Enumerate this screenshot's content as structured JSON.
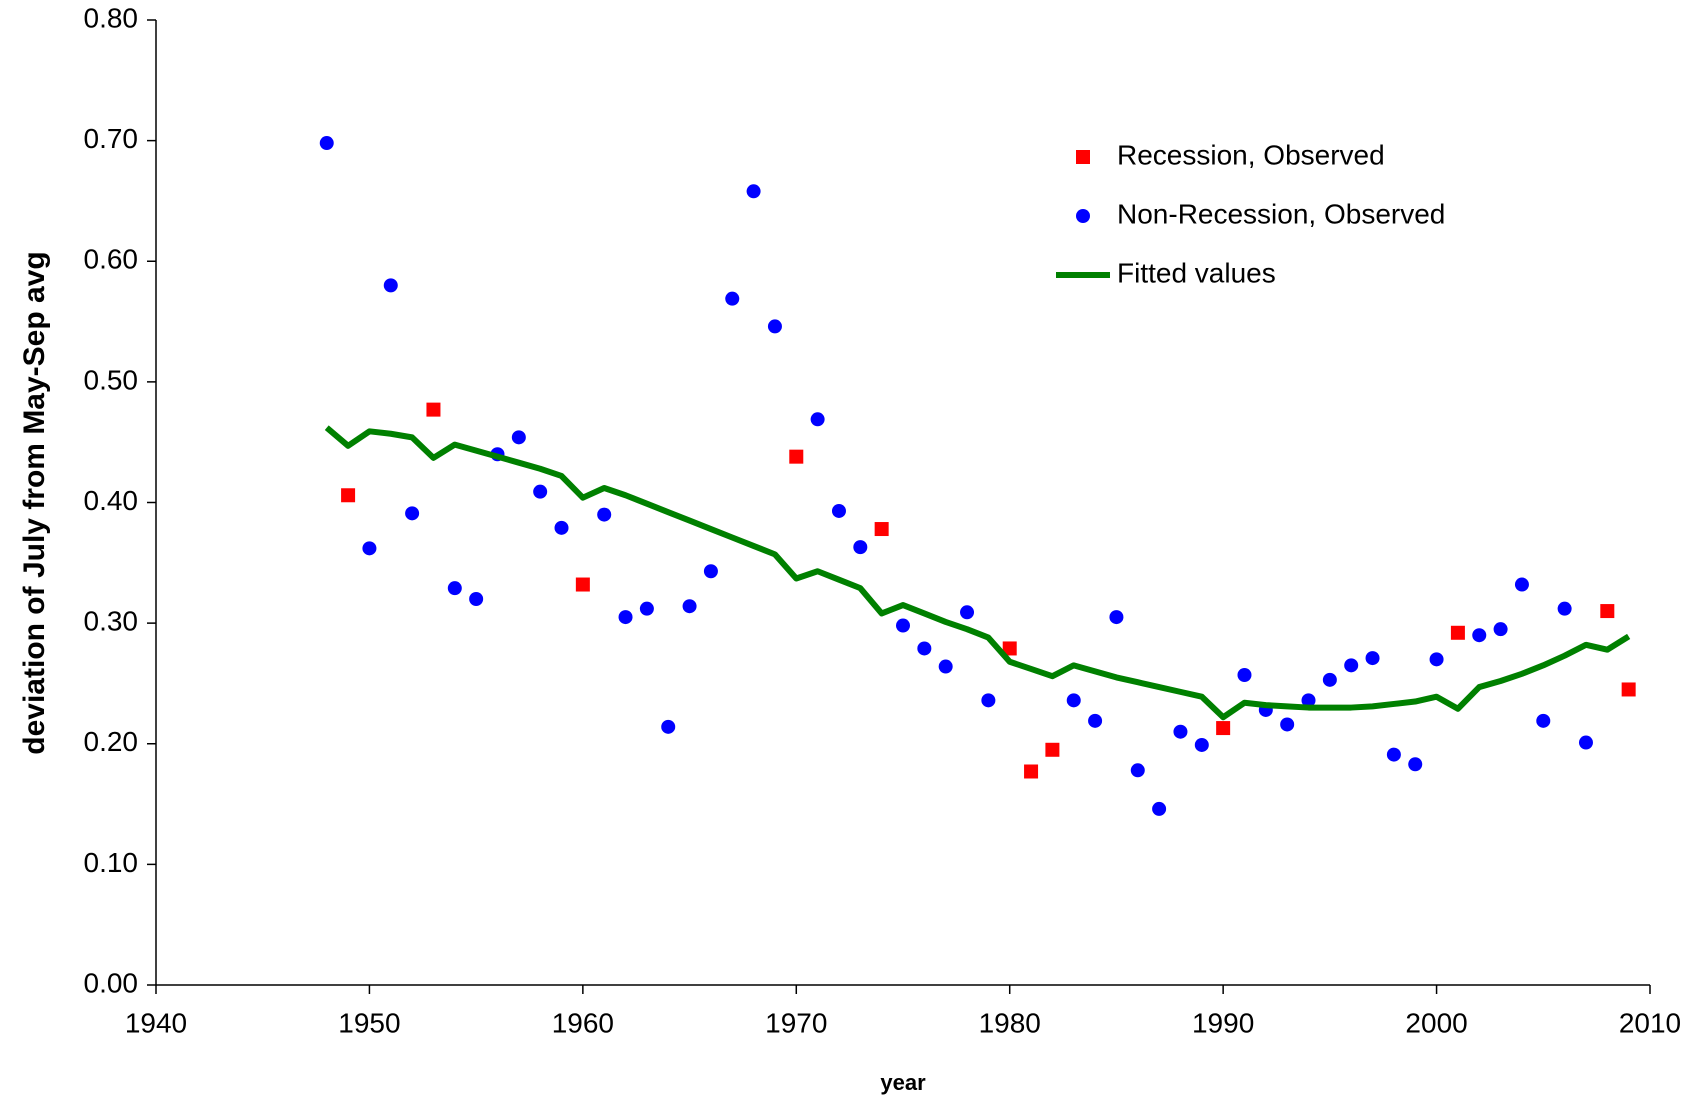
{
  "chart_data": {
    "type": "scatter",
    "xlabel": "year",
    "ylabel": "deviation of July from May-Sep avg",
    "xlim": [
      1940,
      2010
    ],
    "xticks": [
      1940,
      1950,
      1960,
      1970,
      1980,
      1990,
      2000,
      2010
    ],
    "ylim": [
      0,
      0.8
    ],
    "yticks": [
      {
        "value": 0,
        "label": "0.00"
      },
      {
        "value": 0.1,
        "label": "0.10"
      },
      {
        "value": 0.2,
        "label": "0.20"
      },
      {
        "value": 0.3,
        "label": "0.30"
      },
      {
        "value": 0.4,
        "label": "0.40"
      },
      {
        "value": 0.5,
        "label": "0.50"
      },
      {
        "value": 0.6,
        "label": "0.60"
      },
      {
        "value": 0.7,
        "label": "0.70"
      },
      {
        "value": 0.8,
        "label": "0.80"
      }
    ],
    "grid": false,
    "legend": "upper right",
    "series": [
      {
        "name": "Recession, Observed",
        "color": "#ff0000",
        "marker": "square",
        "x": [
          1949,
          1953,
          1960,
          1970,
          1974,
          1980,
          1981,
          1982,
          1990,
          2001,
          2008,
          2009
        ],
        "values": [
          0.406,
          0.477,
          0.332,
          0.438,
          0.378,
          0.279,
          0.177,
          0.195,
          0.213,
          0.292,
          0.31,
          0.245
        ]
      },
      {
        "name": "Non-Recession, Observed",
        "color": "#0000ff",
        "marker": "circle",
        "x": [
          1948,
          1950,
          1951,
          1952,
          1954,
          1955,
          1956,
          1957,
          1958,
          1959,
          1961,
          1962,
          1963,
          1964,
          1965,
          1966,
          1967,
          1968,
          1969,
          1971,
          1972,
          1973,
          1975,
          1976,
          1977,
          1978,
          1979,
          1983,
          1984,
          1985,
          1986,
          1987,
          1988,
          1989,
          1991,
          1992,
          1993,
          1994,
          1995,
          1996,
          1997,
          1998,
          1999,
          2000,
          2002,
          2003,
          2004,
          2005,
          2006,
          2007
        ],
        "values": [
          0.698,
          0.362,
          0.58,
          0.391,
          0.329,
          0.32,
          0.44,
          0.454,
          0.409,
          0.379,
          0.39,
          0.305,
          0.312,
          0.214,
          0.314,
          0.343,
          0.569,
          0.658,
          0.546,
          0.469,
          0.393,
          0.363,
          0.298,
          0.279,
          0.264,
          0.309,
          0.236,
          0.236,
          0.219,
          0.305,
          0.178,
          0.146,
          0.21,
          0.199,
          0.257,
          0.228,
          0.216,
          0.236,
          0.253,
          0.265,
          0.271,
          0.191,
          0.183,
          0.27,
          0.29,
          0.295,
          0.332,
          0.219,
          0.312,
          0.201
        ]
      },
      {
        "name": "Fitted values",
        "color": "#008000",
        "marker": "line",
        "x": [
          1948,
          1949,
          1950,
          1951,
          1952,
          1953,
          1954,
          1955,
          1956,
          1957,
          1958,
          1959,
          1960,
          1961,
          1962,
          1963,
          1964,
          1965,
          1966,
          1967,
          1968,
          1969,
          1970,
          1971,
          1972,
          1973,
          1974,
          1975,
          1976,
          1977,
          1978,
          1979,
          1980,
          1981,
          1982,
          1983,
          1984,
          1985,
          1986,
          1987,
          1988,
          1989,
          1990,
          1991,
          1992,
          1993,
          1994,
          1995,
          1996,
          1997,
          1998,
          1999,
          2000,
          2001,
          2002,
          2003,
          2004,
          2005,
          2006,
          2007,
          2008,
          2009
        ],
        "values": [
          0.462,
          0.447,
          0.459,
          0.457,
          0.454,
          0.437,
          0.448,
          0.443,
          0.438,
          0.433,
          0.428,
          0.422,
          0.404,
          0.412,
          0.406,
          0.399,
          0.392,
          0.385,
          0.378,
          0.371,
          0.364,
          0.357,
          0.337,
          0.343,
          0.336,
          0.329,
          0.308,
          0.315,
          0.308,
          0.301,
          0.295,
          0.288,
          0.268,
          0.262,
          0.256,
          0.265,
          0.26,
          0.255,
          0.251,
          0.247,
          0.243,
          0.239,
          0.222,
          0.234,
          0.232,
          0.231,
          0.23,
          0.23,
          0.23,
          0.231,
          0.233,
          0.235,
          0.239,
          0.229,
          0.247,
          0.252,
          0.258,
          0.265,
          0.273,
          0.282,
          0.278,
          0.289
        ]
      }
    ]
  }
}
